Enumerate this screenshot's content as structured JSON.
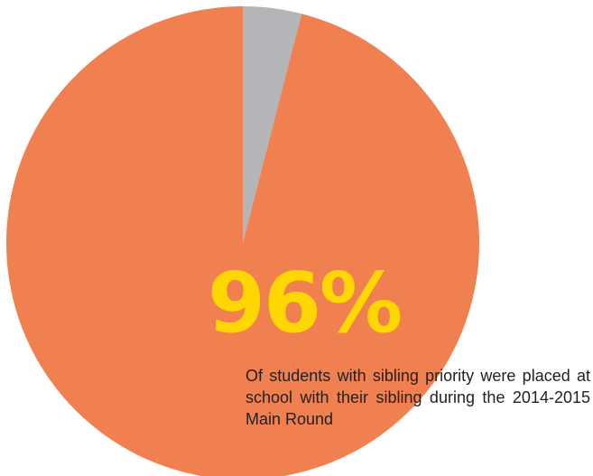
{
  "chart_data": {
    "type": "pie",
    "values": [
      96,
      4
    ],
    "colors": [
      "#f08050",
      "#b4b5b8"
    ],
    "center_label": "96%",
    "caption": "Of students with sibling priority were placed at school with their sibling during the 2014-2015 Main Round"
  }
}
